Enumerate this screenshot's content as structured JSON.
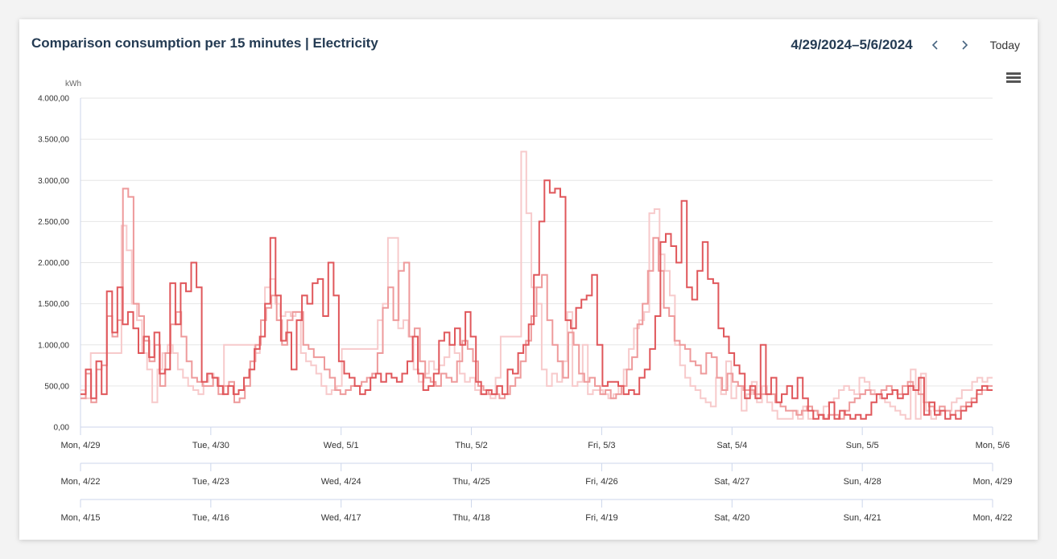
{
  "header": {
    "title": "Comparison consumption per 15 minutes | Electricity",
    "date_range": "4/29/2024–5/6/2024",
    "prev_icon": "chevron-left-icon",
    "next_icon": "chevron-right-icon",
    "today_label": "Today",
    "menu_icon": "hamburger-menu-icon"
  },
  "chart_data": {
    "type": "line",
    "step": true,
    "ylabel": "kWh",
    "ylim": [
      0,
      4000
    ],
    "yticks": [
      "0,00",
      "500,00",
      "1.000,00",
      "1.500,00",
      "2.000,00",
      "2.500,00",
      "3.000,00",
      "3.500,00",
      "4.000,00"
    ],
    "grid": true,
    "x_axes": [
      [
        "Mon, 4/29",
        "Tue, 4/30",
        "Wed, 5/1",
        "Thu, 5/2",
        "Fri, 5/3",
        "Sat, 5/4",
        "Sun, 5/5",
        "Mon, 5/6"
      ],
      [
        "Mon, 4/22",
        "Tue, 4/23",
        "Wed, 4/24",
        "Thu, 4/25",
        "Fri, 4/26",
        "Sat, 4/27",
        "Sun, 4/28",
        "Mon, 4/29"
      ],
      [
        "Mon, 4/15",
        "Tue, 4/16",
        "Wed, 4/17",
        "Thu, 4/18",
        "Fri, 4/19",
        "Sat, 4/20",
        "Sun, 4/21",
        "Mon, 4/22"
      ]
    ],
    "series": [
      {
        "color": "#e0575b",
        "values": [
          400,
          700,
          350,
          800,
          400,
          1650,
          1150,
          1700,
          1250,
          1400,
          1200,
          900,
          1100,
          850,
          1150,
          650,
          700,
          1750,
          1250,
          1750,
          1650,
          2000,
          1700,
          550,
          650,
          600,
          500,
          400,
          500,
          400,
          450,
          600,
          700,
          950,
          1100,
          1500,
          2300,
          1600,
          1050,
          1150,
          700,
          1300,
          1600,
          1500,
          1750,
          1800,
          1350,
          2000,
          1600,
          800,
          650,
          600,
          500,
          400,
          450,
          600,
          650,
          550,
          650,
          600,
          550,
          650,
          800,
          1100,
          650,
          450,
          500,
          650,
          1050,
          1150,
          1000,
          1200,
          1000,
          1400,
          1100,
          550,
          400,
          450,
          400,
          500,
          400,
          700,
          650,
          900,
          1000,
          1250,
          1850,
          2500,
          3000,
          2850,
          2900,
          2800,
          1300,
          1200,
          1450,
          1550,
          1600,
          1850,
          1000,
          500,
          550,
          550,
          500,
          400,
          450,
          400,
          600,
          700,
          950,
          1350,
          2250,
          2350,
          2200,
          2000,
          2750,
          1700,
          1550,
          1900,
          2250,
          1800,
          1750,
          1200,
          1100,
          900,
          750,
          650,
          350,
          500,
          350,
          1000,
          400,
          600,
          300,
          400,
          500,
          350,
          600,
          350,
          200,
          100,
          150,
          100,
          300,
          100,
          200,
          150,
          100,
          150,
          100,
          150,
          300,
          400,
          350,
          400,
          450,
          350,
          400,
          500,
          450,
          600,
          150,
          300,
          150,
          200,
          100,
          150,
          100,
          200,
          250,
          300,
          450,
          500,
          450
        ]
      },
      {
        "color": "#ee9a9b",
        "values": [
          350,
          650,
          300,
          700,
          750,
          1350,
          1100,
          1300,
          2900,
          2800,
          1500,
          1350,
          1050,
          800,
          1000,
          500,
          900,
          1250,
          1400,
          1100,
          800,
          600,
          550,
          500,
          500,
          600,
          400,
          500,
          550,
          300,
          350,
          500,
          800,
          1000,
          1300,
          1450,
          1600,
          1300,
          1000,
          1300,
          1400,
          1400,
          1000,
          950,
          850,
          850,
          700,
          600,
          450,
          400,
          450,
          500,
          500,
          550,
          600,
          650,
          900,
          1450,
          1700,
          1300,
          1900,
          2000,
          1100,
          1200,
          800,
          600,
          550,
          500,
          650,
          600,
          550,
          800,
          1050,
          950,
          800,
          500,
          450,
          400,
          400,
          350,
          400,
          500,
          600,
          800,
          1050,
          1350,
          1700,
          1850,
          1300,
          1000,
          800,
          600,
          1150,
          1000,
          650,
          550,
          600,
          500,
          400,
          450,
          350,
          400,
          500,
          700,
          850,
          1250,
          1500,
          1900,
          2300,
          1900,
          1450,
          1350,
          1050,
          1000,
          950,
          800,
          750,
          650,
          900,
          850,
          600,
          450,
          650,
          550,
          500,
          450,
          450,
          400,
          400,
          400,
          400,
          300,
          250,
          200,
          200,
          150,
          200,
          250,
          200,
          150,
          100,
          150,
          150,
          100,
          200,
          300,
          350,
          400,
          450,
          400,
          400,
          450,
          500,
          450,
          400,
          500,
          550,
          450,
          400,
          300,
          250,
          200,
          250,
          200,
          150,
          200,
          250,
          300,
          350,
          400,
          450,
          500
        ]
      },
      {
        "color": "#f7cacb",
        "values": [
          450,
          350,
          900,
          900,
          900,
          900,
          900,
          900,
          2450,
          2150,
          1500,
          1300,
          900,
          700,
          300,
          700,
          900,
          1000,
          900,
          700,
          600,
          500,
          450,
          400,
          550,
          650,
          600,
          500,
          1000,
          1000,
          1000,
          1000,
          1000,
          1000,
          900,
          1100,
          1700,
          1800,
          1500,
          1350,
          1400,
          1350,
          1400,
          900,
          800,
          750,
          650,
          500,
          400,
          450,
          500,
          950,
          950,
          950,
          950,
          950,
          950,
          950,
          1300,
          1500,
          2300,
          2300,
          1200,
          1300,
          1100,
          700,
          550,
          650,
          800,
          700,
          750,
          850,
          1000,
          900,
          650,
          550,
          600,
          450,
          400,
          400,
          350,
          600,
          1100,
          1100,
          1100,
          1100,
          3350,
          2600,
          1700,
          1500,
          700,
          500,
          650,
          550,
          800,
          1400,
          500,
          550,
          1000,
          400,
          450,
          450,
          400,
          350,
          400,
          500,
          700,
          950,
          1200,
          1300,
          1400,
          2600,
          2650,
          2100,
          1900,
          1600,
          1000,
          750,
          600,
          500,
          450,
          350,
          300,
          250,
          600,
          400,
          800,
          350,
          500,
          200,
          400,
          550,
          300,
          500,
          300,
          200,
          100,
          100,
          100,
          200,
          100,
          250,
          100,
          200,
          150,
          250,
          300,
          350,
          450,
          500,
          450,
          400,
          600,
          550,
          450,
          400,
          350,
          300,
          250,
          200,
          150,
          100,
          700,
          100,
          650,
          200,
          100,
          150,
          200,
          200,
          300,
          350,
          450,
          450,
          550,
          600,
          550,
          600
        ]
      }
    ]
  }
}
